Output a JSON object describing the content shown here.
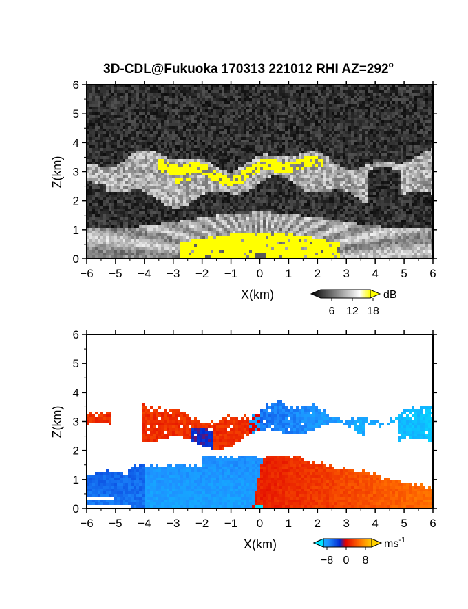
{
  "title": {
    "main": "3D-CDL@Fukuoka 170313 221012 RHI AZ=292",
    "degree_symbol": "o"
  },
  "chart_data": [
    {
      "type": "heatmap",
      "name": "backscatter",
      "xlabel": "X(km)",
      "ylabel": "Z(km)",
      "xlim": [
        -6,
        6
      ],
      "ylim": [
        0,
        6
      ],
      "xticks": [
        -6,
        -5,
        -4,
        -3,
        -2,
        -1,
        0,
        1,
        2,
        3,
        4,
        5,
        6
      ],
      "yticks": [
        0,
        1,
        2,
        3,
        4,
        5,
        6
      ],
      "colorbar": {
        "unit": "dB",
        "ticks": [
          6,
          12,
          18
        ],
        "range": [
          0,
          20
        ],
        "colors": [
          "#000000",
          "#ffffff",
          "#ffff00"
        ]
      },
      "features": [
        {
          "kind": "noise-background",
          "zmin": 0,
          "zmax": 6,
          "level": 3
        },
        {
          "kind": "cloud-layer",
          "x": [
            -5.8,
            6
          ],
          "z": [
            1.9,
            3.6
          ],
          "level": 13
        },
        {
          "kind": "high-echo-cloud",
          "x": [
            -3.5,
            2.2
          ],
          "z": [
            2.9,
            3.6
          ],
          "level": 19
        },
        {
          "kind": "boundary-layer",
          "x": [
            -6,
            6
          ],
          "z": [
            0,
            1.7
          ],
          "level": 12
        },
        {
          "kind": "high-echo-near-surface",
          "x": [
            -2.6,
            2.8
          ],
          "z": [
            0,
            0.9
          ],
          "level": 19
        }
      ]
    },
    {
      "type": "heatmap",
      "name": "doppler-velocity",
      "xlabel": "X(km)",
      "ylabel": "Z(km)",
      "xlim": [
        -6,
        6
      ],
      "ylim": [
        0,
        6
      ],
      "xticks": [
        -6,
        -5,
        -4,
        -3,
        -2,
        -1,
        0,
        1,
        2,
        3,
        4,
        5,
        6
      ],
      "yticks": [
        0,
        1,
        2,
        3,
        4,
        5,
        6
      ],
      "colorbar": {
        "unit": "ms",
        "unit_exponent": "-1",
        "ticks": [
          -8,
          0,
          8
        ],
        "range": [
          -10,
          10
        ],
        "colors": [
          "#00e5ff",
          "#1e90ff",
          "#0028d0",
          "#e00000",
          "#ff6a00",
          "#ffd000"
        ]
      },
      "features": [
        {
          "kind": "toward-radar-layer",
          "x": [
            -6,
            -0.2
          ],
          "z": [
            0,
            1.8
          ],
          "velocity": -6
        },
        {
          "kind": "away-from-radar-layer",
          "x": [
            -0.2,
            6
          ],
          "z": [
            0,
            1.8
          ],
          "velocity": 4
        },
        {
          "kind": "cloud-away",
          "x": [
            -5.8,
            0
          ],
          "z": [
            2.4,
            3.7
          ],
          "velocity": 4
        },
        {
          "kind": "cloud-toward",
          "x": [
            0,
            6
          ],
          "z": [
            2.5,
            3.8
          ],
          "velocity": -6
        }
      ]
    }
  ]
}
